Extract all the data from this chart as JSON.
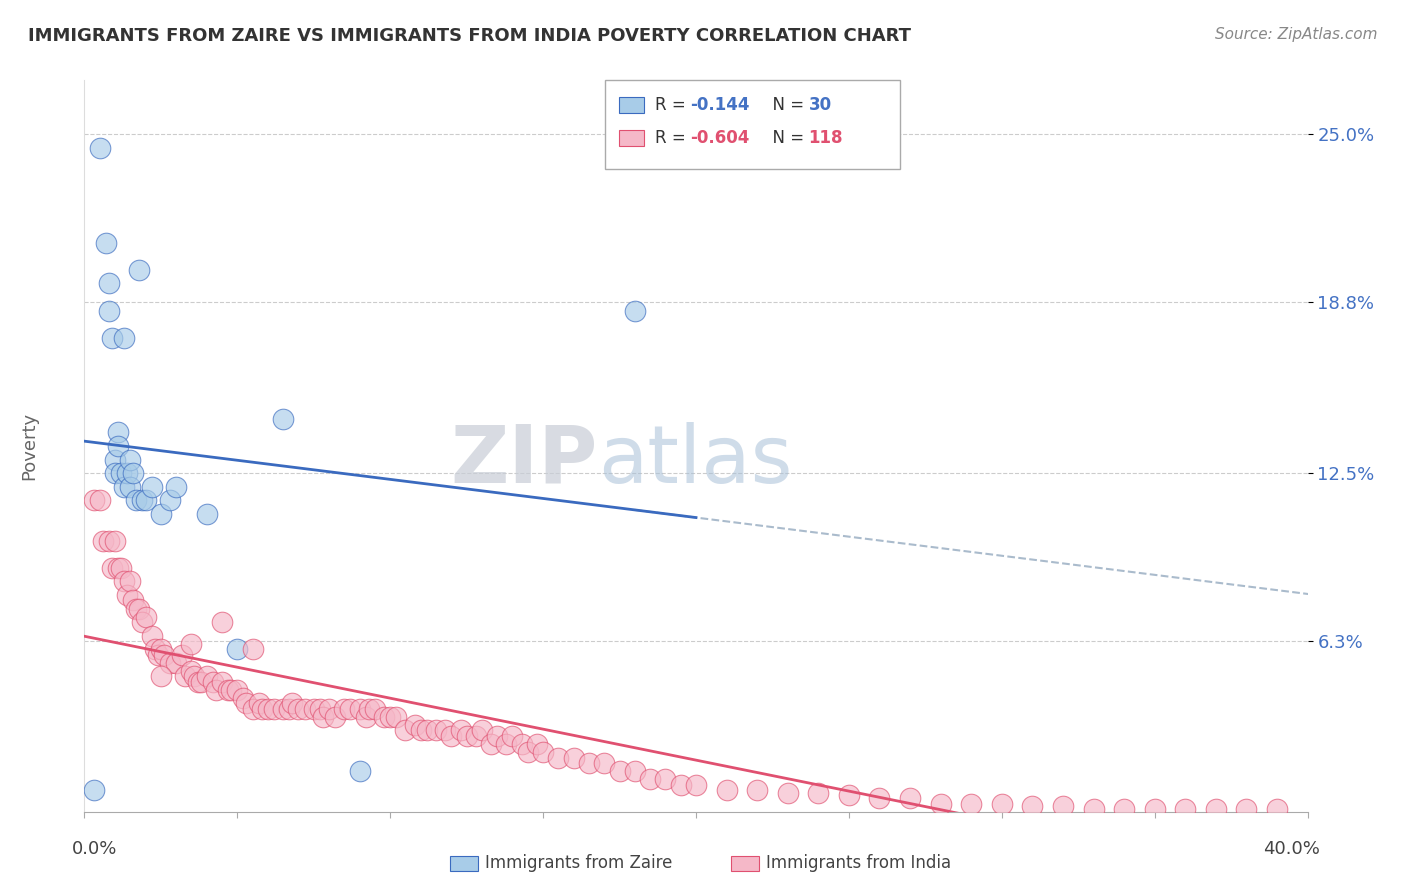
{
  "title": "IMMIGRANTS FROM ZAIRE VS IMMIGRANTS FROM INDIA POVERTY CORRELATION CHART",
  "source": "Source: ZipAtlas.com",
  "ylabel": "Poverty",
  "ytick_labels": [
    "25.0%",
    "18.8%",
    "12.5%",
    "6.3%"
  ],
  "ytick_values": [
    0.25,
    0.188,
    0.125,
    0.063
  ],
  "xlim": [
    0.0,
    0.4
  ],
  "ylim": [
    0.0,
    0.27
  ],
  "color_blue": "#a8cce8",
  "color_pink": "#f5b8c8",
  "color_blue_line": "#3a6abf",
  "color_pink_line": "#e05070",
  "color_dashed": "#aabbcc",
  "watermark_zip": "ZIP",
  "watermark_atlas": "atlas",
  "zaire_x": [
    0.003,
    0.005,
    0.007,
    0.008,
    0.008,
    0.009,
    0.01,
    0.01,
    0.011,
    0.011,
    0.012,
    0.013,
    0.013,
    0.014,
    0.015,
    0.015,
    0.016,
    0.017,
    0.018,
    0.019,
    0.02,
    0.022,
    0.025,
    0.028,
    0.03,
    0.04,
    0.05,
    0.065,
    0.09,
    0.18
  ],
  "zaire_y": [
    0.008,
    0.245,
    0.21,
    0.195,
    0.185,
    0.175,
    0.13,
    0.125,
    0.14,
    0.135,
    0.125,
    0.12,
    0.175,
    0.125,
    0.13,
    0.12,
    0.125,
    0.115,
    0.2,
    0.115,
    0.115,
    0.12,
    0.11,
    0.115,
    0.12,
    0.11,
    0.06,
    0.145,
    0.015,
    0.185
  ],
  "india_x": [
    0.003,
    0.005,
    0.006,
    0.008,
    0.009,
    0.01,
    0.011,
    0.012,
    0.013,
    0.014,
    0.015,
    0.016,
    0.017,
    0.018,
    0.019,
    0.02,
    0.022,
    0.023,
    0.024,
    0.025,
    0.026,
    0.028,
    0.03,
    0.032,
    0.033,
    0.035,
    0.036,
    0.037,
    0.038,
    0.04,
    0.042,
    0.043,
    0.045,
    0.047,
    0.048,
    0.05,
    0.052,
    0.053,
    0.055,
    0.057,
    0.058,
    0.06,
    0.062,
    0.065,
    0.067,
    0.068,
    0.07,
    0.072,
    0.075,
    0.077,
    0.078,
    0.08,
    0.082,
    0.085,
    0.087,
    0.09,
    0.092,
    0.093,
    0.095,
    0.098,
    0.1,
    0.102,
    0.105,
    0.108,
    0.11,
    0.112,
    0.115,
    0.118,
    0.12,
    0.123,
    0.125,
    0.128,
    0.13,
    0.133,
    0.135,
    0.138,
    0.14,
    0.143,
    0.145,
    0.148,
    0.15,
    0.155,
    0.16,
    0.165,
    0.17,
    0.175,
    0.18,
    0.185,
    0.19,
    0.195,
    0.2,
    0.21,
    0.22,
    0.23,
    0.24,
    0.25,
    0.26,
    0.27,
    0.28,
    0.29,
    0.3,
    0.31,
    0.32,
    0.33,
    0.34,
    0.35,
    0.36,
    0.37,
    0.38,
    0.39,
    0.025,
    0.035,
    0.045,
    0.055
  ],
  "india_y": [
    0.115,
    0.115,
    0.1,
    0.1,
    0.09,
    0.1,
    0.09,
    0.09,
    0.085,
    0.08,
    0.085,
    0.078,
    0.075,
    0.075,
    0.07,
    0.072,
    0.065,
    0.06,
    0.058,
    0.06,
    0.058,
    0.055,
    0.055,
    0.058,
    0.05,
    0.052,
    0.05,
    0.048,
    0.048,
    0.05,
    0.048,
    0.045,
    0.048,
    0.045,
    0.045,
    0.045,
    0.042,
    0.04,
    0.038,
    0.04,
    0.038,
    0.038,
    0.038,
    0.038,
    0.038,
    0.04,
    0.038,
    0.038,
    0.038,
    0.038,
    0.035,
    0.038,
    0.035,
    0.038,
    0.038,
    0.038,
    0.035,
    0.038,
    0.038,
    0.035,
    0.035,
    0.035,
    0.03,
    0.032,
    0.03,
    0.03,
    0.03,
    0.03,
    0.028,
    0.03,
    0.028,
    0.028,
    0.03,
    0.025,
    0.028,
    0.025,
    0.028,
    0.025,
    0.022,
    0.025,
    0.022,
    0.02,
    0.02,
    0.018,
    0.018,
    0.015,
    0.015,
    0.012,
    0.012,
    0.01,
    0.01,
    0.008,
    0.008,
    0.007,
    0.007,
    0.006,
    0.005,
    0.005,
    0.003,
    0.003,
    0.003,
    0.002,
    0.002,
    0.001,
    0.001,
    0.001,
    0.001,
    0.001,
    0.001,
    0.001,
    0.05,
    0.062,
    0.07,
    0.06
  ]
}
